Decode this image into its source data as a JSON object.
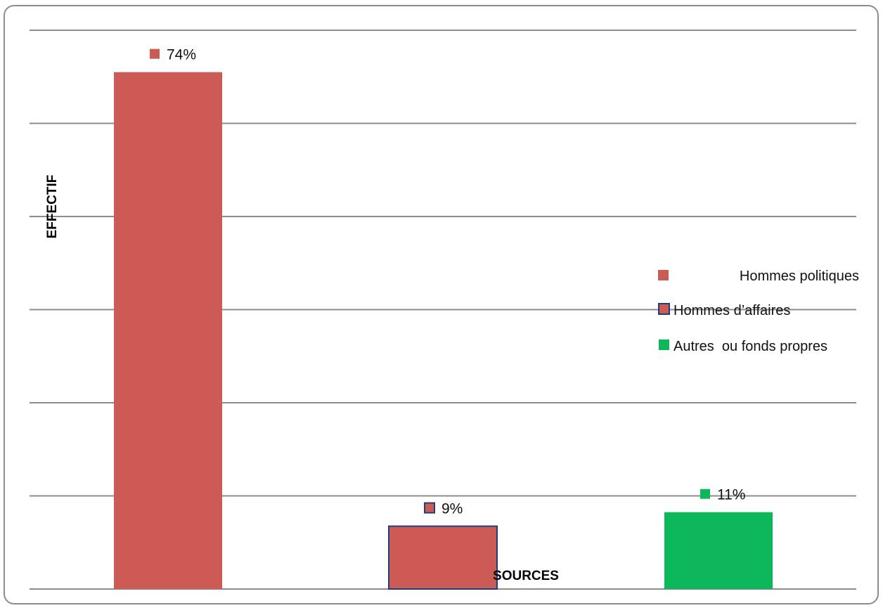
{
  "chart_data": {
    "type": "bar",
    "title": "",
    "xlabel": "SOURCES",
    "ylabel": "EFFECTIF",
    "ylim": [
      0,
      80
    ],
    "grid": true,
    "legend_position": "right",
    "categories": [
      "Hommes politiques",
      "Hommes d’affaires",
      "Autres  ou fonds propres"
    ],
    "values": [
      74,
      9,
      11
    ],
    "data_labels": [
      "74%",
      "9%",
      "11%"
    ],
    "colors": [
      "#CD5B55",
      "#CD5B55",
      "#0DB85A"
    ],
    "outline_colors": [
      "none",
      "#1F3F7A",
      "none"
    ],
    "legend": [
      {
        "label": "Hommes politiques",
        "color": "#CD5B55",
        "outline": "none"
      },
      {
        "label": "Hommes d’affaires",
        "color": "#CD5B55",
        "outline": "#1F3F7A"
      },
      {
        "label": "Autres  ou fonds propres",
        "color": "#0DB85A",
        "outline": "none"
      }
    ]
  }
}
